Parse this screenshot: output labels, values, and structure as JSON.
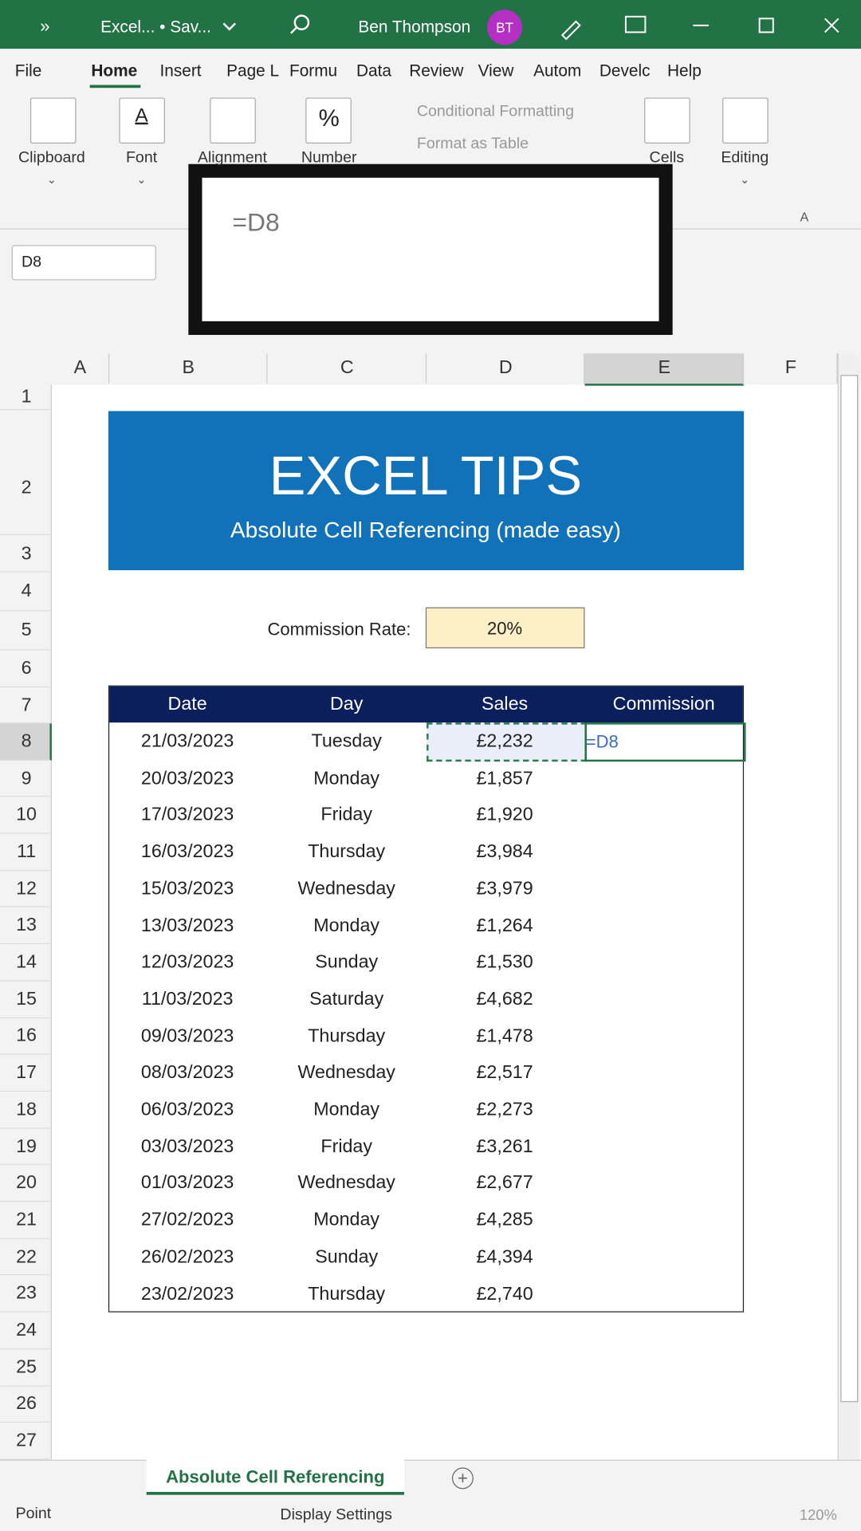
{
  "title_bar": {
    "overflow": "»",
    "file": "Excel... • Sav...",
    "user": "Ben Thompson",
    "initials": "BT"
  },
  "ribbon": {
    "tabs": [
      "File",
      "Home",
      "Insert",
      "Page L",
      "Formu",
      "Data",
      "Review",
      "View",
      "Autom",
      "Develc",
      "Help"
    ],
    "groups": [
      "Clipboard",
      "Font",
      "Alignment",
      "Number",
      "Cells",
      "Editing"
    ],
    "font_icon": "A",
    "number_icon": "%",
    "styles": [
      "Conditional Formatting",
      "Format as Table"
    ],
    "more": "A"
  },
  "formula_zoom": "=D8",
  "name_box": "D8",
  "columns": [
    "A",
    "B",
    "C",
    "D",
    "E",
    "F"
  ],
  "rows": [
    1,
    2,
    3,
    4,
    5,
    6,
    7,
    8,
    9,
    10,
    11,
    12,
    13,
    14,
    15,
    16,
    17,
    18,
    19,
    20,
    21,
    22,
    23,
    24,
    25,
    26,
    27
  ],
  "banner": {
    "title": "EXCEL TIPS",
    "subtitle": "Absolute Cell Referencing (made easy)"
  },
  "rate": {
    "label": "Commission Rate:",
    "value": "20%"
  },
  "table": {
    "headers": [
      "Date",
      "Day",
      "Sales",
      "Commission"
    ],
    "rows": [
      [
        "21/03/2023",
        "Tuesday",
        "£2,232"
      ],
      [
        "20/03/2023",
        "Monday",
        "£1,857"
      ],
      [
        "17/03/2023",
        "Friday",
        "£1,920"
      ],
      [
        "16/03/2023",
        "Thursday",
        "£3,984"
      ],
      [
        "15/03/2023",
        "Wednesday",
        "£3,979"
      ],
      [
        "13/03/2023",
        "Monday",
        "£1,264"
      ],
      [
        "12/03/2023",
        "Sunday",
        "£1,530"
      ],
      [
        "11/03/2023",
        "Saturday",
        "£4,682"
      ],
      [
        "09/03/2023",
        "Thursday",
        "£1,478"
      ],
      [
        "08/03/2023",
        "Wednesday",
        "£2,517"
      ],
      [
        "06/03/2023",
        "Monday",
        "£2,273"
      ],
      [
        "03/03/2023",
        "Friday",
        "£3,261"
      ],
      [
        "01/03/2023",
        "Wednesday",
        "£2,677"
      ],
      [
        "27/02/2023",
        "Monday",
        "£4,285"
      ],
      [
        "26/02/2023",
        "Sunday",
        "£4,394"
      ],
      [
        "23/02/2023",
        "Thursday",
        "£2,740"
      ]
    ],
    "active_cell": "=D8"
  },
  "sheet_tab": "Absolute Cell Referencing",
  "status": {
    "mode": "Point",
    "display": "Display Settings",
    "zoom": "120%"
  }
}
